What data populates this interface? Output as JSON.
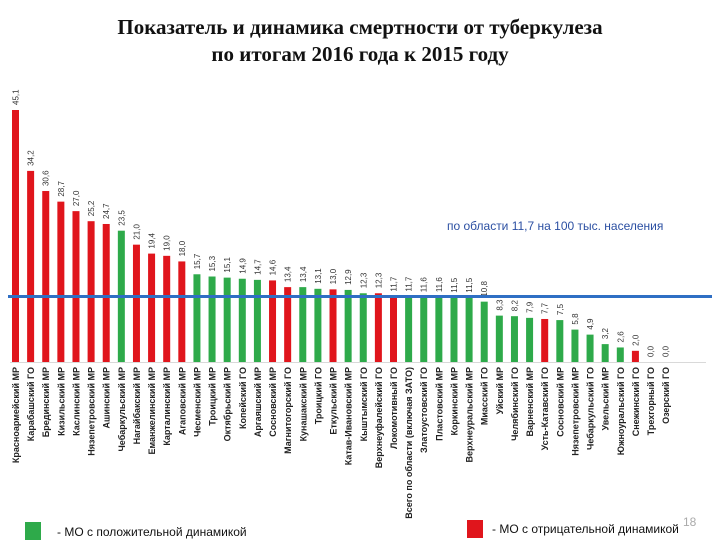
{
  "page_number": "18",
  "colors": {
    "positive": "#2eaa4a",
    "negative": "#e0151c",
    "average_line": "#2f6fc4"
  },
  "chart_data": {
    "type": "bar",
    "title_lines": [
      "Показатель и динамика смертности от туберкулеза",
      "по итогам 2016 года к 2015 году"
    ],
    "ylim": [
      0,
      46
    ],
    "average": 11.7,
    "annotation": "по области 11,7 на 100 тыс. населения",
    "legend": [
      {
        "label": "- МО с положительной динамикой",
        "color": "#2eaa4a"
      },
      {
        "label": "- МО с отрицательной динамикой",
        "color": "#e0151c"
      }
    ],
    "bars": [
      {
        "category": "Красноармейский МР",
        "value": 45.1,
        "label": "45,1",
        "dynamics": "negative"
      },
      {
        "category": "Карабашский ГО",
        "value": 34.2,
        "label": "34,2",
        "dynamics": "negative"
      },
      {
        "category": "Брединский МР",
        "value": 30.6,
        "label": "30,6",
        "dynamics": "negative"
      },
      {
        "category": "Кизильский МР",
        "value": 28.7,
        "label": "28,7",
        "dynamics": "negative"
      },
      {
        "category": "Каслинский МР",
        "value": 27.0,
        "label": "27,0",
        "dynamics": "negative"
      },
      {
        "category": "Нязепетровский МР",
        "value": 25.2,
        "label": "25,2",
        "dynamics": "negative"
      },
      {
        "category": "Ашинский МР",
        "value": 24.7,
        "label": "24,7",
        "dynamics": "negative"
      },
      {
        "category": "Чебаркульский МР",
        "value": 23.5,
        "label": "23,5",
        "dynamics": "positive"
      },
      {
        "category": "Нагайбакский МР",
        "value": 21.0,
        "label": "21,0",
        "dynamics": "negative"
      },
      {
        "category": "Еманжелинский МР",
        "value": 19.4,
        "label": "19,4",
        "dynamics": "negative"
      },
      {
        "category": "Карталинский МР",
        "value": 19.0,
        "label": "19,0",
        "dynamics": "negative"
      },
      {
        "category": "Агаповский МР",
        "value": 18.0,
        "label": "18,0",
        "dynamics": "negative"
      },
      {
        "category": "Чесменский МР",
        "value": 15.7,
        "label": "15,7",
        "dynamics": "positive"
      },
      {
        "category": "Троицкий МР",
        "value": 15.3,
        "label": "15,3",
        "dynamics": "positive"
      },
      {
        "category": "Октябрьский МР",
        "value": 15.1,
        "label": "15,1",
        "dynamics": "positive"
      },
      {
        "category": "Копейский ГО",
        "value": 14.9,
        "label": "14,9",
        "dynamics": "positive"
      },
      {
        "category": "Аргаяшский МР",
        "value": 14.7,
        "label": "14,7",
        "dynamics": "positive"
      },
      {
        "category": "Сосновский МР",
        "value": 14.6,
        "label": "14,6",
        "dynamics": "negative"
      },
      {
        "category": "Магнитогорский ГО",
        "value": 13.4,
        "label": "13,4",
        "dynamics": "negative"
      },
      {
        "category": "Кунашакский МР",
        "value": 13.4,
        "label": "13,4",
        "dynamics": "positive"
      },
      {
        "category": "Троицкий ГО",
        "value": 13.1,
        "label": "13,1",
        "dynamics": "positive"
      },
      {
        "category": "Еткульский МР",
        "value": 13.0,
        "label": "13,0",
        "dynamics": "negative"
      },
      {
        "category": "Катав-Ивановский МР",
        "value": 12.9,
        "label": "12,9",
        "dynamics": "positive"
      },
      {
        "category": "Кыштымский ГО",
        "value": 12.3,
        "label": "12,3",
        "dynamics": "positive"
      },
      {
        "category": "Верхнеуфалейский ГО",
        "value": 12.3,
        "label": "12,3",
        "dynamics": "negative"
      },
      {
        "category": "Локомотивный ГО",
        "value": 11.7,
        "label": "11,7",
        "dynamics": "negative"
      },
      {
        "category": "Всего по области (включая ЗАТО)",
        "value": 11.7,
        "label": "11,7",
        "dynamics": "positive"
      },
      {
        "category": "Златоустовский ГО",
        "value": 11.6,
        "label": "11,6",
        "dynamics": "positive"
      },
      {
        "category": "Пластовский МР",
        "value": 11.6,
        "label": "11,6",
        "dynamics": "positive"
      },
      {
        "category": "Коркинский МР",
        "value": 11.5,
        "label": "11,5",
        "dynamics": "positive"
      },
      {
        "category": "Верхнеуральский МР",
        "value": 11.5,
        "label": "11,5",
        "dynamics": "positive"
      },
      {
        "category": "Миасский ГО",
        "value": 10.8,
        "label": "10,8",
        "dynamics": "positive"
      },
      {
        "category": "Уйский МР",
        "value": 8.3,
        "label": "8,3",
        "dynamics": "positive"
      },
      {
        "category": "Челябинский ГО",
        "value": 8.2,
        "label": "8,2",
        "dynamics": "positive"
      },
      {
        "category": "Варненский МР",
        "value": 7.9,
        "label": "7,9",
        "dynamics": "positive"
      },
      {
        "category": "Усть-Катавский ГО",
        "value": 7.7,
        "label": "7,7",
        "dynamics": "negative"
      },
      {
        "category": "Сосновский МР",
        "value": 7.5,
        "label": "7,5",
        "dynamics": "positive"
      },
      {
        "category": "Нязепетровский МР",
        "value": 5.8,
        "label": "5,8",
        "dynamics": "positive"
      },
      {
        "category": "Чебаркульский ГО",
        "value": 4.9,
        "label": "4,9",
        "dynamics": "positive"
      },
      {
        "category": "Увельский МР",
        "value": 3.2,
        "label": "3,2",
        "dynamics": "positive"
      },
      {
        "category": "Южноуральский ГО",
        "value": 2.6,
        "label": "2,6",
        "dynamics": "positive"
      },
      {
        "category": "Снежинский ГО",
        "value": 2.0,
        "label": "2,0",
        "dynamics": "negative"
      },
      {
        "category": "Трехгорный ГО",
        "value": 0.0,
        "label": "0,0",
        "dynamics": "positive"
      },
      {
        "category": "Озерский ГО",
        "value": 0.0,
        "label": "0,0",
        "dynamics": "positive"
      }
    ]
  }
}
